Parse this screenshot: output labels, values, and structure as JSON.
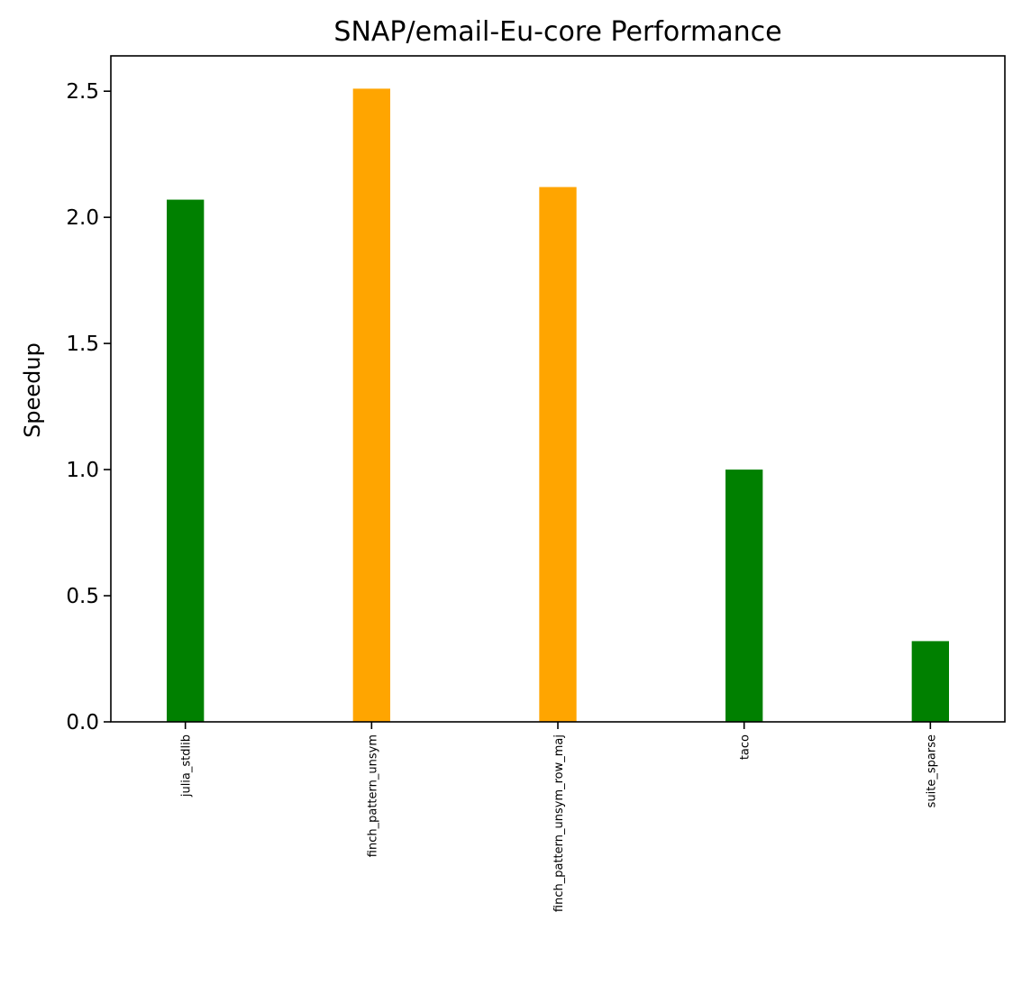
{
  "chart_data": {
    "type": "bar",
    "title": "SNAP/email-Eu-core Performance",
    "xlabel": "",
    "ylabel": "Speedup",
    "categories": [
      "julia_stdlib",
      "finch_pattern_unsym",
      "finch_pattern_unsym_row_maj",
      "taco",
      "suite_sparse"
    ],
    "values": [
      2.07,
      2.51,
      2.12,
      1.0,
      0.32
    ],
    "bar_colors": [
      "#008000",
      "#FFA500",
      "#FFA500",
      "#008000",
      "#008000"
    ],
    "ylim": [
      0,
      2.64
    ],
    "yticks": [
      0.0,
      0.5,
      1.0,
      1.5,
      2.0,
      2.5
    ],
    "ytick_labels": [
      "0.0",
      "0.5",
      "1.0",
      "1.5",
      "2.0",
      "2.5"
    ],
    "grid": false
  }
}
